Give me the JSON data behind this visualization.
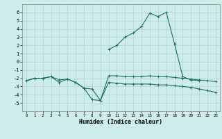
{
  "xlabel": "Humidex (Indice chaleur)",
  "background_color": "#ceecea",
  "grid_color": "#aed4d0",
  "line_color": "#1a6e65",
  "x_values": [
    0,
    1,
    2,
    3,
    4,
    5,
    6,
    7,
    8,
    9,
    10,
    11,
    12,
    13,
    14,
    15,
    16,
    17,
    18,
    19,
    20,
    21,
    22,
    23
  ],
  "y_peak": [
    null,
    null,
    null,
    null,
    null,
    null,
    null,
    null,
    null,
    null,
    1.5,
    2.0,
    3.0,
    3.5,
    4.3,
    5.9,
    5.5,
    6.0,
    2.2,
    -1.8,
    -2.2,
    -2.3,
    null,
    null
  ],
  "y_flat": [
    -2.3,
    -2.0,
    -2.0,
    -1.8,
    -2.2,
    -2.1,
    -2.5,
    -3.2,
    -4.6,
    -4.7,
    -1.7,
    -1.7,
    -1.8,
    -1.8,
    -1.8,
    -1.7,
    -1.8,
    -1.8,
    -1.9,
    -2.0,
    -2.1,
    -2.2,
    -2.3,
    -2.4
  ],
  "y_down": [
    -2.3,
    -2.0,
    -2.0,
    -1.8,
    -2.5,
    -2.1,
    -2.5,
    -3.2,
    -3.3,
    -4.7,
    -2.5,
    -2.6,
    -2.7,
    -2.7,
    -2.7,
    -2.7,
    -2.8,
    -2.8,
    -2.9,
    -3.0,
    -3.1,
    -3.3,
    -3.5,
    -3.7
  ],
  "ylim": [
    -6,
    7
  ],
  "yticks": [
    -5,
    -4,
    -3,
    -2,
    -1,
    0,
    1,
    2,
    3,
    4,
    5,
    6
  ],
  "xticks": [
    0,
    1,
    2,
    3,
    4,
    5,
    6,
    7,
    8,
    9,
    10,
    11,
    12,
    13,
    14,
    15,
    16,
    17,
    18,
    19,
    20,
    21,
    22,
    23
  ]
}
